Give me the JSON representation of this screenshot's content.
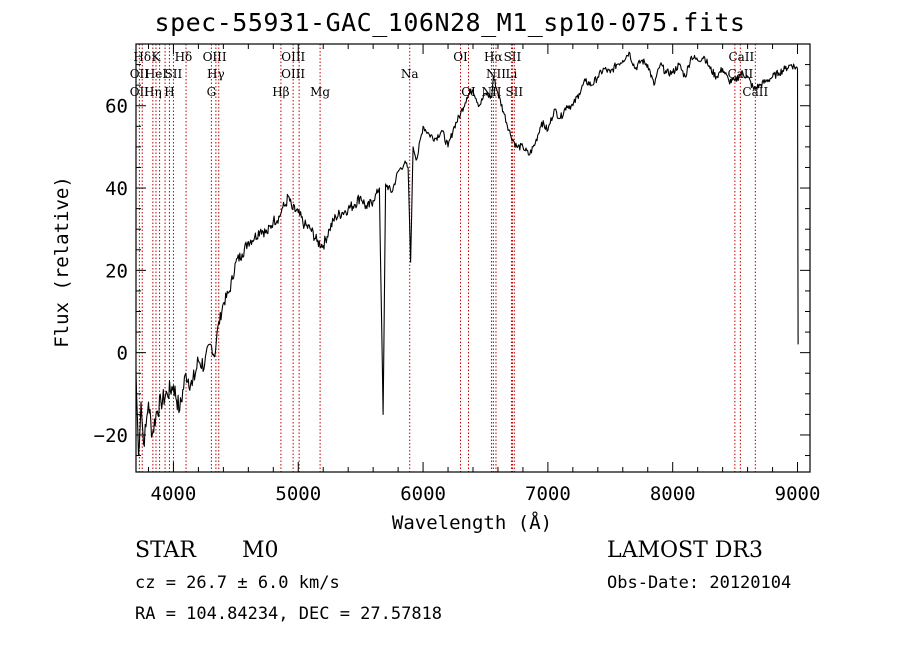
{
  "chart_data": {
    "type": "line",
    "title": "spec-55931-GAC_106N28_M1_sp10-075.fits",
    "xlabel": "Wavelength (Å)",
    "ylabel": "Flux (relative)",
    "xlim": [
      3700,
      9100
    ],
    "ylim": [
      -29,
      75
    ],
    "xticks": [
      4000,
      5000,
      6000,
      7000,
      8000,
      9000
    ],
    "yticks": [
      -20,
      0,
      20,
      40,
      60
    ],
    "series": [
      {
        "name": "spectrum",
        "x": [
          3700,
          3720,
          3740,
          3760,
          3780,
          3800,
          3830,
          3860,
          3900,
          3950,
          4000,
          4050,
          4100,
          4150,
          4200,
          4250,
          4300,
          4330,
          4350,
          4400,
          4450,
          4500,
          4550,
          4600,
          4650,
          4700,
          4750,
          4800,
          4850,
          4870,
          4900,
          4920,
          4950,
          5000,
          5050,
          5100,
          5150,
          5200,
          5250,
          5300,
          5350,
          5400,
          5450,
          5500,
          5550,
          5600,
          5650,
          5680,
          5700,
          5750,
          5800,
          5850,
          5880,
          5900,
          5920,
          5950,
          6000,
          6050,
          6100,
          6150,
          6200,
          6250,
          6300,
          6350,
          6400,
          6450,
          6500,
          6550,
          6563,
          6600,
          6650,
          6700,
          6750,
          6800,
          6850,
          6900,
          6950,
          7000,
          7050,
          7100,
          7150,
          7200,
          7250,
          7300,
          7350,
          7400,
          7450,
          7500,
          7550,
          7600,
          7650,
          7700,
          7750,
          7800,
          7850,
          7900,
          7950,
          8000,
          8050,
          8100,
          8150,
          8200,
          8250,
          8300,
          8350,
          8400,
          8450,
          8500,
          8550,
          8600,
          8650,
          8700,
          8750,
          8800,
          8850,
          8900,
          8950,
          9000,
          9005
        ],
        "y": [
          -5,
          -25,
          -12,
          -22,
          -18,
          -12,
          -20,
          -15,
          -12,
          -10,
          -8,
          -14,
          -5,
          -8,
          -2,
          -3,
          2,
          -1,
          5,
          12,
          15,
          22,
          24,
          27,
          28,
          30,
          29,
          32,
          33,
          35,
          36,
          38,
          35,
          34,
          31,
          30,
          27,
          26,
          30,
          33,
          34,
          35,
          36,
          38,
          35,
          37,
          40,
          -15,
          41,
          39,
          44,
          46,
          45,
          22,
          50,
          47,
          55,
          53,
          52,
          54,
          50,
          55,
          58,
          62,
          64,
          60,
          63,
          62,
          67,
          63,
          58,
          53,
          50,
          50,
          48,
          51,
          56,
          54,
          59,
          57,
          60,
          60,
          63,
          66,
          65,
          67,
          69,
          68,
          70,
          71,
          73,
          69,
          71,
          70,
          65,
          70,
          68,
          68,
          70,
          67,
          72,
          71,
          72,
          69,
          67,
          69,
          66,
          66,
          68,
          67,
          64,
          65,
          66,
          67,
          68,
          69,
          70,
          69,
          2
        ]
      }
    ],
    "line_labels": [
      {
        "text": "Hδ",
        "x": 3750,
        "row": 1
      },
      {
        "text": "K",
        "x": 3860,
        "row": 1
      },
      {
        "text": "Hδ",
        "x": 4080,
        "row": 1
      },
      {
        "text": "OIII",
        "x": 4330,
        "row": 1
      },
      {
        "text": "OIII",
        "x": 4960,
        "row": 1
      },
      {
        "text": "OI",
        "x": 6300,
        "row": 1
      },
      {
        "text": "Hα",
        "x": 6563,
        "row": 1
      },
      {
        "text": "SII",
        "x": 6716,
        "row": 1
      },
      {
        "text": "CaII",
        "x": 8550,
        "row": 1
      },
      {
        "text": "OII",
        "x": 3727,
        "row": 2
      },
      {
        "text": "HeI",
        "x": 3860,
        "row": 2
      },
      {
        "text": "SII",
        "x": 4000,
        "row": 2
      },
      {
        "text": "Hγ",
        "x": 4340,
        "row": 2
      },
      {
        "text": "OIII",
        "x": 4959,
        "row": 2
      },
      {
        "text": "Na",
        "x": 5893,
        "row": 2
      },
      {
        "text": "NII",
        "x": 6584,
        "row": 2
      },
      {
        "text": "Li",
        "x": 6708,
        "row": 2
      },
      {
        "text": "CaII",
        "x": 8542,
        "row": 2
      },
      {
        "text": "OII",
        "x": 3727,
        "row": 3
      },
      {
        "text": "Hη",
        "x": 3835,
        "row": 3
      },
      {
        "text": "H",
        "x": 3968,
        "row": 3
      },
      {
        "text": "G",
        "x": 4304,
        "row": 3
      },
      {
        "text": "Hβ",
        "x": 4861,
        "row": 3
      },
      {
        "text": "Mg",
        "x": 5175,
        "row": 3
      },
      {
        "text": "OI",
        "x": 6364,
        "row": 3
      },
      {
        "text": "NII",
        "x": 6548,
        "row": 3
      },
      {
        "text": "SII",
        "x": 6731,
        "row": 3
      },
      {
        "text": "CaII",
        "x": 8662,
        "row": 3
      }
    ],
    "line_markers": [
      3727,
      3750,
      3835,
      3860,
      3889,
      3933,
      3968,
      4000,
      4101,
      4304,
      4340,
      4363,
      4861,
      4959,
      5007,
      5175,
      5893,
      6300,
      6364,
      6548,
      6563,
      6584,
      6708,
      6716,
      6731,
      8498,
      8542,
      8662
    ]
  },
  "info": {
    "class": "STAR",
    "subclass": "M0",
    "survey": "LAMOST DR3",
    "cz": "cz = 26.7 ± 6.0 km/s",
    "obs_date": "Obs-Date: 20120104",
    "coords": "RA = 104.84234, DEC =  27.57818"
  }
}
